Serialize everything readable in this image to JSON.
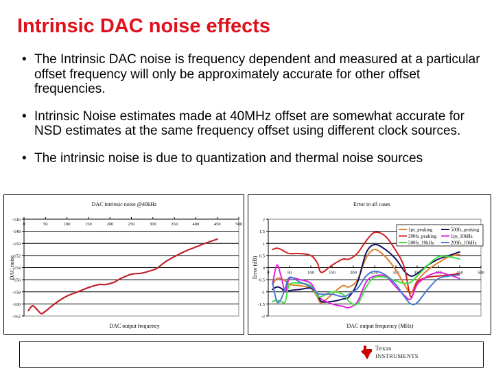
{
  "slide": {
    "title": "Intrinsic DAC noise effects",
    "bullets": [
      {
        "marker": "•",
        "text": "The Intrinsic DAC noise is frequency dependent and measured at a particular offset frequency will only be approximately accurate for other offset frequencies."
      },
      {
        "marker": "•",
        "text": "Intrinsic Noise estimates made at 40MHz offset are somewhat accurate for NSD estimates at the same frequency offset using different clock sources."
      },
      {
        "marker": "•",
        "text": "The intrinsic noise is due to quantization and thermal noise sources"
      }
    ],
    "footer": {
      "logo_line1": "Texas",
      "logo_line2": "Instruments",
      "logo_color": "#cc0000"
    },
    "colors": {
      "title": "#e0101a"
    }
  },
  "chart_data": [
    {
      "type": "line",
      "title": "DAC intrinsic noise @40kHz",
      "xlabel": "DAC output frequency",
      "ylabel": "DAC noise",
      "xlim": [
        0,
        500
      ],
      "ylim": [
        -162,
        -146
      ],
      "x_ticks": [
        0,
        50,
        100,
        150,
        200,
        250,
        300,
        350,
        400,
        450,
        500
      ],
      "y_ticks": [
        -146,
        -148,
        -150,
        -152,
        -154,
        -156,
        -158,
        -160,
        -162
      ],
      "grid": true,
      "x_axis_position": "top",
      "series": [
        {
          "name": "DAC noise",
          "color": "#c0202a",
          "x": [
            10,
            20,
            30,
            40,
            50,
            75,
            100,
            125,
            150,
            175,
            190,
            210,
            225,
            250,
            275,
            300,
            310,
            330,
            350,
            375,
            400,
            425,
            450
          ],
          "values": [
            -161.1,
            -160.3,
            -160.9,
            -161.6,
            -161.2,
            -159.8,
            -158.7,
            -158.0,
            -157.3,
            -156.8,
            -156.8,
            -156.4,
            -155.8,
            -155.1,
            -154.9,
            -154.4,
            -154.1,
            -153.0,
            -152.2,
            -151.3,
            -150.6,
            -149.9,
            -149.3
          ]
        }
      ]
    },
    {
      "type": "line",
      "title": "Error in all cases",
      "xlabel": "DAC output frequency (MHz)",
      "ylabel": "Error (dB)",
      "xlim": [
        0,
        500
      ],
      "ylim": [
        -2,
        2
      ],
      "x_ticks": [
        0,
        50,
        100,
        150,
        200,
        250,
        300,
        350,
        400,
        450,
        500
      ],
      "y_ticks": [
        2,
        1.5,
        1,
        0.5,
        0,
        -0.5,
        -1,
        -1.5,
        -2
      ],
      "grid": true,
      "legend_position": "upper right",
      "x": [
        10,
        20,
        30,
        40,
        50,
        75,
        100,
        115,
        125,
        150,
        175,
        190,
        210,
        230,
        250,
        275,
        300,
        320,
        335,
        350,
        375,
        400,
        425,
        450
      ],
      "series": [
        {
          "name": "1ps_peaking",
          "color": "#e07b28",
          "values": [
            -0.7,
            -0.45,
            -0.45,
            -0.55,
            -0.7,
            -0.75,
            -0.85,
            -1.2,
            -1.45,
            -1.1,
            -0.75,
            -0.8,
            -0.5,
            0.4,
            0.75,
            0.45,
            -0.1,
            -0.7,
            -1.05,
            -0.55,
            -0.1,
            0.2,
            0.45,
            0.55
          ]
        },
        {
          "name": "500fs_peaking",
          "color": "#101060",
          "values": [
            -0.9,
            -0.8,
            -0.85,
            -1.0,
            -0.95,
            -0.9,
            -0.85,
            -1.1,
            -1.4,
            -1.4,
            -1.3,
            -1.2,
            -0.6,
            0.6,
            0.95,
            0.75,
            0.35,
            -0.15,
            -0.35,
            -0.25,
            0.1,
            0.35,
            0.5,
            0.65
          ]
        },
        {
          "name": "200fs_peaking",
          "color": "#cc2020",
          "values": [
            0.75,
            0.8,
            0.75,
            0.65,
            0.58,
            0.58,
            0.5,
            0.2,
            -0.2,
            0.1,
            0.35,
            0.35,
            0.6,
            1.1,
            1.45,
            1.3,
            0.7,
            0.0,
            -1.2,
            -0.6,
            -0.4,
            -0.35,
            -0.3,
            -0.25
          ]
        },
        {
          "name": "1ps_10kHz",
          "color": "#e020e0",
          "values": [
            -0.7,
            0.1,
            -0.35,
            -1.0,
            -0.45,
            -0.5,
            -0.65,
            -1.1,
            -1.3,
            -1.5,
            -1.6,
            -1.65,
            -1.4,
            -0.6,
            -0.35,
            -0.35,
            -0.8,
            -1.15,
            -1.3,
            -0.7,
            -0.35,
            -0.2,
            -0.3,
            -0.45
          ]
        },
        {
          "name": "500fs_10kHz",
          "color": "#40e040",
          "values": [
            -1.4,
            -1.35,
            -1.4,
            -1.4,
            -0.7,
            -0.65,
            -0.75,
            -1.15,
            -1.2,
            -1.0,
            -1.1,
            -1.4,
            -1.5,
            -0.8,
            -0.4,
            -0.4,
            -0.55,
            -0.65,
            -0.6,
            -0.35,
            0.1,
            0.45,
            0.45,
            0.35
          ]
        },
        {
          "name": "200fs_10kHz",
          "color": "#4a78d0",
          "values": [
            -0.6,
            -1.4,
            -1.3,
            -0.85,
            -0.4,
            -0.6,
            -0.8,
            -1.05,
            -1.1,
            -1.1,
            -1.2,
            -1.1,
            -0.85,
            -0.35,
            -0.15,
            -0.3,
            -0.7,
            -1.2,
            -1.5,
            -1.45,
            -0.9,
            -0.45,
            -0.35,
            -0.3
          ]
        }
      ]
    }
  ]
}
